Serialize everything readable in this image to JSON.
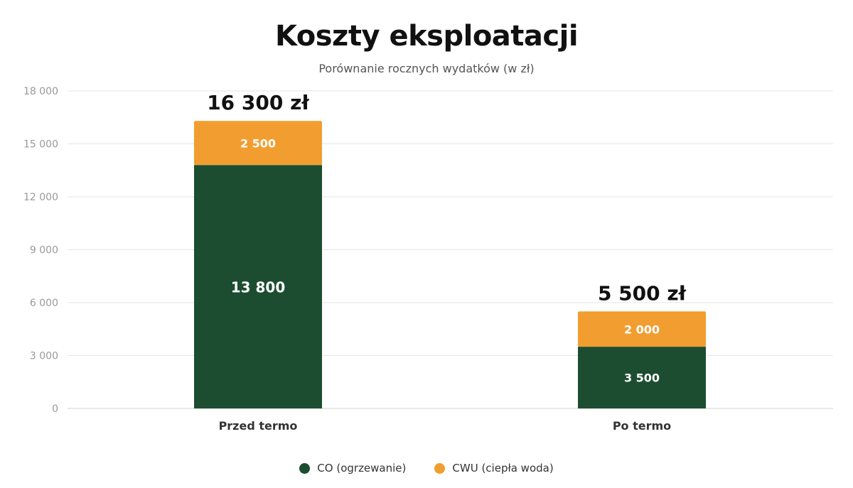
{
  "chart_data": {
    "type": "bar",
    "stacked": true,
    "title": "Koszty eksploatacji",
    "subtitle": "Porównanie rocznych wydatków (w zł)",
    "categories": [
      "Przed termo",
      "Po termo"
    ],
    "series": [
      {
        "name": "CO (ogrzewanie)",
        "color": "#1c4d30",
        "values": [
          13800,
          3500
        ],
        "labels": [
          "13 800",
          "3 500"
        ]
      },
      {
        "name": "CWU (ciepła woda)",
        "color": "#f29d30",
        "values": [
          2500,
          2000
        ],
        "labels": [
          "2 500",
          "2 000"
        ]
      }
    ],
    "totals": [
      16300,
      5500
    ],
    "total_labels": [
      "16 300 zł",
      "5 500 zł"
    ],
    "ylim": [
      0,
      18000
    ],
    "yticks": [
      0,
      3000,
      6000,
      9000,
      12000,
      15000,
      18000
    ],
    "ytick_labels": [
      "0",
      "3 000",
      "6 000",
      "9 000",
      "12 000",
      "15 000",
      "18 000"
    ],
    "grid": true,
    "legend_position": "bottom-center",
    "xlabel": "",
    "ylabel": ""
  }
}
